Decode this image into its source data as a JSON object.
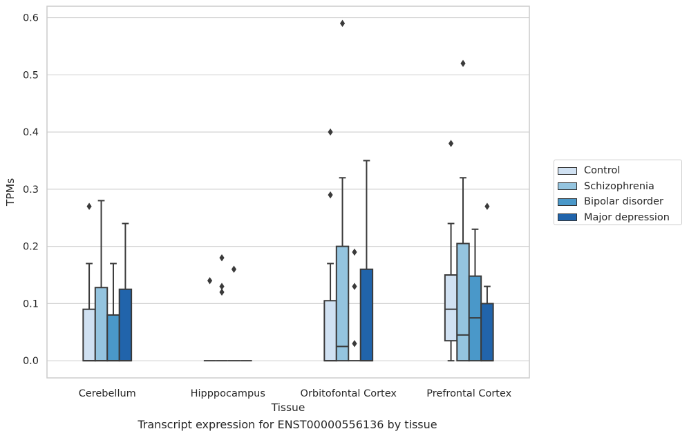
{
  "chart_data": {
    "type": "box",
    "title": "",
    "caption": "Transcript expression for ENST00000556136 by tissue",
    "xlabel": "Tissue",
    "ylabel": "TPMs",
    "ylim": [
      -0.03,
      0.62
    ],
    "yticks": [
      "0.0",
      "0.1",
      "0.2",
      "0.3",
      "0.4",
      "0.5",
      "0.6"
    ],
    "grid": "horizontal",
    "legend_position": "right",
    "categories": [
      "Cerebellum",
      "Hipppocampus",
      "Orbitofontal Cortex",
      "Prefrontal Cortex"
    ],
    "series": [
      {
        "name": "Control",
        "color": "#d0e1f2",
        "boxes": [
          {
            "q1": 0.0,
            "median": 0.0,
            "q3": 0.09,
            "whisker_low": 0.0,
            "whisker_high": 0.17,
            "outliers": [
              0.27
            ]
          },
          {
            "q1": 0.0,
            "median": 0.0,
            "q3": 0.0,
            "whisker_low": 0.0,
            "whisker_high": 0.0,
            "outliers": [
              0.14
            ]
          },
          {
            "q1": 0.0,
            "median": 0.0,
            "q3": 0.105,
            "whisker_low": 0.0,
            "whisker_high": 0.17,
            "outliers": [
              0.29,
              0.4
            ]
          },
          {
            "q1": 0.035,
            "median": 0.09,
            "q3": 0.15,
            "whisker_low": 0.0,
            "whisker_high": 0.24,
            "outliers": [
              0.38
            ]
          }
        ]
      },
      {
        "name": "Schizophrenia",
        "color": "#94c4df",
        "boxes": [
          {
            "q1": 0.0,
            "median": 0.0,
            "q3": 0.128,
            "whisker_low": 0.0,
            "whisker_high": 0.28,
            "outliers": []
          },
          {
            "q1": 0.0,
            "median": 0.0,
            "q3": 0.0,
            "whisker_low": 0.0,
            "whisker_high": 0.0,
            "outliers": [
              0.12,
              0.13,
              0.18
            ]
          },
          {
            "q1": 0.0,
            "median": 0.025,
            "q3": 0.2,
            "whisker_low": 0.0,
            "whisker_high": 0.32,
            "outliers": [
              0.59
            ]
          },
          {
            "q1": 0.0,
            "median": 0.045,
            "q3": 0.205,
            "whisker_low": 0.0,
            "whisker_high": 0.32,
            "outliers": [
              0.52
            ]
          }
        ]
      },
      {
        "name": "Bipolar disorder",
        "color": "#4a98c9",
        "boxes": [
          {
            "q1": 0.0,
            "median": 0.0,
            "q3": 0.08,
            "whisker_low": 0.0,
            "whisker_high": 0.17,
            "outliers": []
          },
          {
            "q1": 0.0,
            "median": 0.0,
            "q3": 0.0,
            "whisker_low": 0.0,
            "whisker_high": 0.0,
            "outliers": [
              0.16
            ]
          },
          {
            "q1": 0.0,
            "median": 0.0,
            "q3": 0.0,
            "whisker_low": 0.0,
            "whisker_high": 0.0,
            "outliers": [
              0.03,
              0.13,
              0.19
            ]
          },
          {
            "q1": 0.0,
            "median": 0.075,
            "q3": 0.148,
            "whisker_low": 0.0,
            "whisker_high": 0.23,
            "outliers": []
          }
        ]
      },
      {
        "name": "Major depression",
        "color": "#2164ab",
        "boxes": [
          {
            "q1": 0.0,
            "median": 0.0,
            "q3": 0.125,
            "whisker_low": 0.0,
            "whisker_high": 0.24,
            "outliers": []
          },
          {
            "q1": 0.0,
            "median": 0.0,
            "q3": 0.0,
            "whisker_low": 0.0,
            "whisker_high": 0.0,
            "outliers": []
          },
          {
            "q1": 0.0,
            "median": 0.0,
            "q3": 0.16,
            "whisker_low": 0.0,
            "whisker_high": 0.35,
            "outliers": []
          },
          {
            "q1": 0.0,
            "median": 0.0,
            "q3": 0.1,
            "whisker_low": 0.0,
            "whisker_high": 0.13,
            "outliers": [
              0.27
            ]
          }
        ]
      }
    ]
  }
}
